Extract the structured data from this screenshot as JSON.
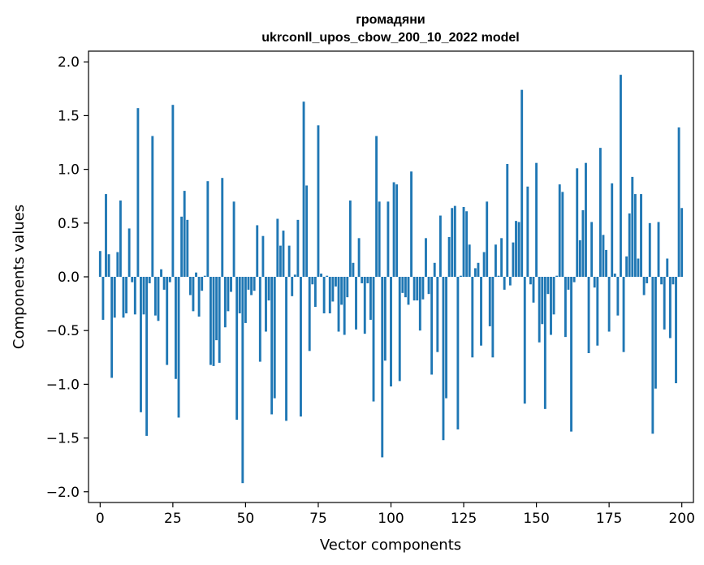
{
  "chart_data": {
    "type": "bar",
    "title_line1": "громадяни",
    "title_line2": "ukrconll_upos_cbow_200_10_2022 model",
    "xlabel": "Vector components",
    "ylabel": "Components values",
    "xlim": [
      -4,
      204
    ],
    "ylim": [
      -2.1,
      2.1
    ],
    "x_ticks": [
      0,
      25,
      50,
      75,
      100,
      125,
      150,
      175,
      200
    ],
    "y_ticks": [
      -2.0,
      -1.5,
      -1.0,
      -0.5,
      0.0,
      0.5,
      1.0,
      1.5,
      2.0
    ],
    "y_tick_labels": [
      "−2.0",
      "−1.5",
      "−1.0",
      "−0.5",
      "0.0",
      "0.5",
      "1.0",
      "1.5",
      "2.0"
    ],
    "bar_color": "#1f77b4",
    "grid": false,
    "values": [
      0.24,
      -0.4,
      0.77,
      0.21,
      -0.94,
      -0.38,
      0.23,
      0.71,
      -0.38,
      -0.34,
      0.45,
      -0.05,
      -0.35,
      1.57,
      -1.26,
      -0.35,
      -1.48,
      -0.06,
      1.31,
      -0.36,
      -0.41,
      0.07,
      -0.12,
      -0.82,
      -0.05,
      1.6,
      -0.95,
      -1.31,
      0.56,
      0.8,
      0.53,
      -0.17,
      -0.32,
      0.04,
      -0.37,
      -0.13,
      0.01,
      0.89,
      -0.82,
      -0.83,
      -0.59,
      -0.8,
      0.92,
      -0.47,
      -0.32,
      -0.14,
      0.7,
      -1.33,
      -0.34,
      -1.92,
      -0.43,
      -0.12,
      -0.17,
      -0.13,
      0.48,
      -0.79,
      0.38,
      -0.51,
      -0.22,
      -1.28,
      -1.13,
      0.54,
      0.29,
      0.43,
      -1.34,
      0.29,
      -0.18,
      0.02,
      0.53,
      -1.3,
      1.63,
      0.85,
      -0.69,
      -0.07,
      -0.28,
      1.41,
      0.03,
      -0.34,
      0.01,
      -0.34,
      -0.23,
      -0.09,
      -0.51,
      -0.26,
      -0.54,
      -0.19,
      0.71,
      0.13,
      -0.49,
      0.36,
      -0.06,
      -0.53,
      -0.06,
      -0.4,
      -1.16,
      1.31,
      0.7,
      -1.68,
      -0.78,
      0.7,
      -1.02,
      0.88,
      0.86,
      -0.97,
      -0.15,
      -0.19,
      -0.26,
      0.98,
      -0.22,
      -0.22,
      -0.5,
      -0.21,
      0.36,
      -0.16,
      -0.91,
      0.13,
      -0.7,
      0.57,
      -1.52,
      -1.13,
      0.37,
      0.64,
      0.66,
      -1.42,
      0.01,
      0.65,
      0.61,
      0.3,
      -0.75,
      0.08,
      0.13,
      -0.64,
      0.23,
      0.7,
      -0.46,
      -0.75,
      0.3,
      0.01,
      0.36,
      -0.12,
      1.05,
      -0.08,
      0.32,
      0.52,
      0.51,
      1.74,
      -1.18,
      0.84,
      -0.07,
      -0.24,
      1.06,
      -0.61,
      -0.44,
      -1.23,
      -0.16,
      -0.54,
      -0.35,
      0.01,
      0.86,
      0.79,
      -0.56,
      -0.12,
      -1.44,
      -0.05,
      1.01,
      0.34,
      0.62,
      1.06,
      -0.71,
      0.51,
      -0.1,
      -0.64,
      1.2,
      0.39,
      0.25,
      -0.51,
      0.87,
      0.03,
      -0.36,
      1.88,
      -0.7,
      0.19,
      0.59,
      0.93,
      0.77,
      0.17,
      0.77,
      -0.17,
      -0.06,
      0.5,
      -1.46,
      -1.04,
      0.51,
      -0.07,
      -0.49,
      0.17,
      -0.57,
      -0.07,
      -0.99,
      1.39,
      0.64
    ]
  }
}
